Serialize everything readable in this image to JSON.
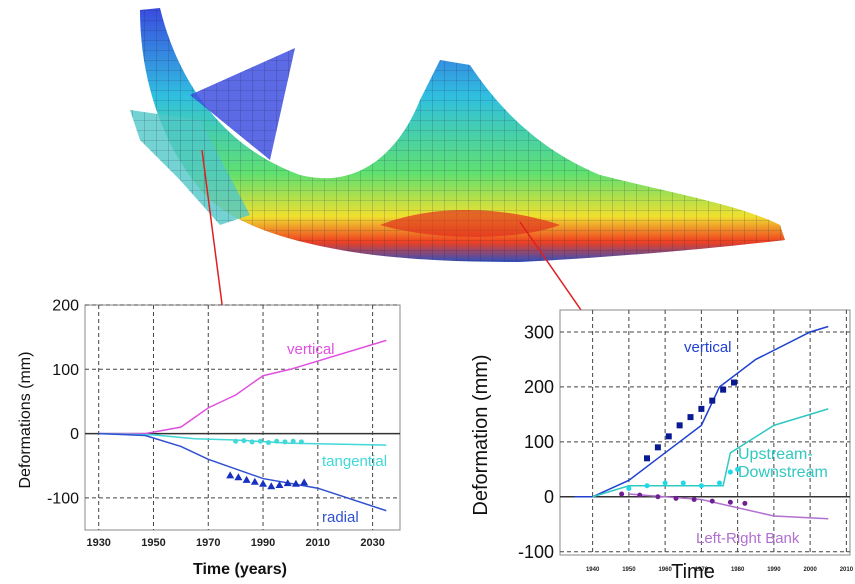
{
  "chart_data": [
    {
      "type": "line",
      "y_label": "Deformations (mm)",
      "x_label": "Time (years)",
      "xlim": [
        1925,
        2040
      ],
      "xticks": [
        1930,
        1950,
        1970,
        1990,
        2010,
        2030
      ],
      "ylim": [
        -150,
        200
      ],
      "yticks": [
        -100,
        0,
        100,
        200
      ],
      "grid": true,
      "series": [
        {
          "name": "vertical",
          "color": "#e050e0",
          "x": [
            1930,
            1947,
            1960,
            1970,
            1980,
            1990,
            2000,
            2035
          ],
          "values": [
            0,
            0,
            10,
            40,
            60,
            90,
            100,
            145
          ]
        },
        {
          "name": "tangential",
          "color": "#40d8d8",
          "x": [
            1930,
            1950,
            1965,
            1980,
            2000,
            2035
          ],
          "values": [
            0,
            -2,
            -8,
            -10,
            -15,
            -18
          ]
        },
        {
          "name": "radial",
          "color": "#3050d0",
          "x": [
            1930,
            1947,
            1960,
            1970,
            1990,
            2010,
            2035
          ],
          "values": [
            0,
            -3,
            -20,
            -40,
            -70,
            -85,
            -120
          ]
        },
        {
          "color": "#40d8d8",
          "marker": "circle",
          "x": [
            1980,
            1983,
            1986,
            1989,
            1992,
            1995,
            1998,
            2001,
            2004
          ],
          "values": [
            -12,
            -11,
            -13,
            -12,
            -14,
            -12,
            -13,
            -12,
            -13
          ]
        },
        {
          "color": "#1830c0",
          "marker": "triangle",
          "x": [
            1978,
            1981,
            1984,
            1987,
            1990,
            1993,
            1996,
            1999,
            2002,
            2005
          ],
          "values": [
            -65,
            -68,
            -72,
            -75,
            -78,
            -82,
            -80,
            -77,
            -78,
            -76
          ]
        }
      ]
    },
    {
      "type": "line",
      "y_label": "Deformation (mm)",
      "x_label": "Time",
      "xlim": [
        1931,
        2011
      ],
      "xticks": [
        1940,
        1950,
        1960,
        1970,
        1980,
        1990,
        2000,
        2010
      ],
      "ylim": [
        -106,
        340
      ],
      "yticks": [
        -100,
        0,
        100,
        200,
        300
      ],
      "grid": true,
      "series": [
        {
          "name": "vertical",
          "color": "#2040d0",
          "x": [
            1935,
            1940,
            1950,
            1960,
            1970,
            1975,
            1985,
            2000,
            2005
          ],
          "values": [
            0,
            0,
            30,
            80,
            130,
            200,
            250,
            300,
            310
          ]
        },
        {
          "name": "Upstream-Downstream",
          "color": "#30c8c0",
          "x": [
            1940,
            1950,
            1970,
            1976,
            1978,
            1990,
            2005
          ],
          "values": [
            0,
            20,
            20,
            20,
            80,
            130,
            160
          ]
        },
        {
          "name": "Left-Right Bank",
          "color": "#b070d0",
          "x": [
            1950,
            1970,
            1980,
            1990,
            2005
          ],
          "values": [
            5,
            -5,
            -20,
            -35,
            -40
          ]
        },
        {
          "color": "#0a1a90",
          "marker": "square",
          "x": [
            1955,
            1958,
            1961,
            1964,
            1967,
            1970,
            1973,
            1976,
            1979
          ],
          "values": [
            70,
            90,
            110,
            130,
            145,
            160,
            175,
            195,
            208
          ]
        },
        {
          "color": "#20d8e8",
          "marker": "circle",
          "x": [
            1950,
            1955,
            1960,
            1965,
            1970,
            1975,
            1978,
            1980
          ],
          "values": [
            15,
            20,
            25,
            25,
            20,
            25,
            45,
            50
          ]
        },
        {
          "color": "#702090",
          "marker": "circle",
          "x": [
            1948,
            1953,
            1958,
            1963,
            1968,
            1973,
            1978,
            1982
          ],
          "values": [
            5,
            3,
            0,
            -3,
            -5,
            -8,
            -10,
            -12
          ]
        }
      ]
    }
  ]
}
